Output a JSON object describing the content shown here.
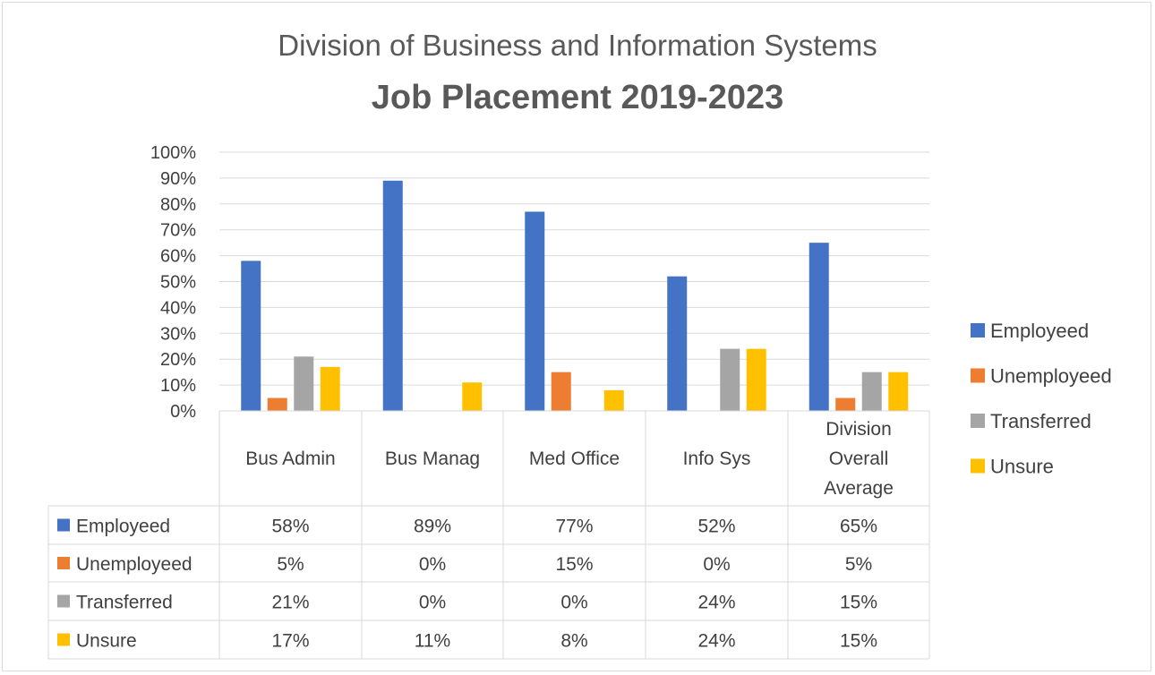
{
  "chart_data": {
    "type": "bar",
    "title": "Division of Business and Information Systems",
    "subtitle": "Job Placement 2019-2023",
    "categories": [
      [
        "Bus Admin"
      ],
      [
        "Bus Manag"
      ],
      [
        "Med Office"
      ],
      [
        "Info Sys"
      ],
      [
        "Division",
        "Overall",
        "Average"
      ]
    ],
    "series": [
      {
        "name": "Employeed",
        "color": "#4472c4",
        "values": [
          58,
          89,
          77,
          52,
          65
        ],
        "labels": [
          "58%",
          "89%",
          "77%",
          "52%",
          "65%"
        ]
      },
      {
        "name": "Unemployeed",
        "color": "#ed7d31",
        "values": [
          5,
          0,
          15,
          0,
          5
        ],
        "labels": [
          "5%",
          "0%",
          "15%",
          "0%",
          "5%"
        ]
      },
      {
        "name": "Transferred",
        "color": "#a5a5a5",
        "values": [
          21,
          0,
          0,
          24,
          15
        ],
        "labels": [
          "21%",
          "0%",
          "0%",
          "24%",
          "15%"
        ]
      },
      {
        "name": "Unsure",
        "color": "#ffc000",
        "values": [
          17,
          11,
          8,
          24,
          15
        ],
        "labels": [
          "17%",
          "11%",
          "8%",
          "24%",
          "15%"
        ]
      }
    ],
    "ylim": [
      0,
      100
    ],
    "yticks": [
      "0%",
      "10%",
      "20%",
      "30%",
      "40%",
      "50%",
      "60%",
      "70%",
      "80%",
      "90%",
      "100%"
    ],
    "grid": true,
    "legend_position": "right",
    "data_table": true
  }
}
